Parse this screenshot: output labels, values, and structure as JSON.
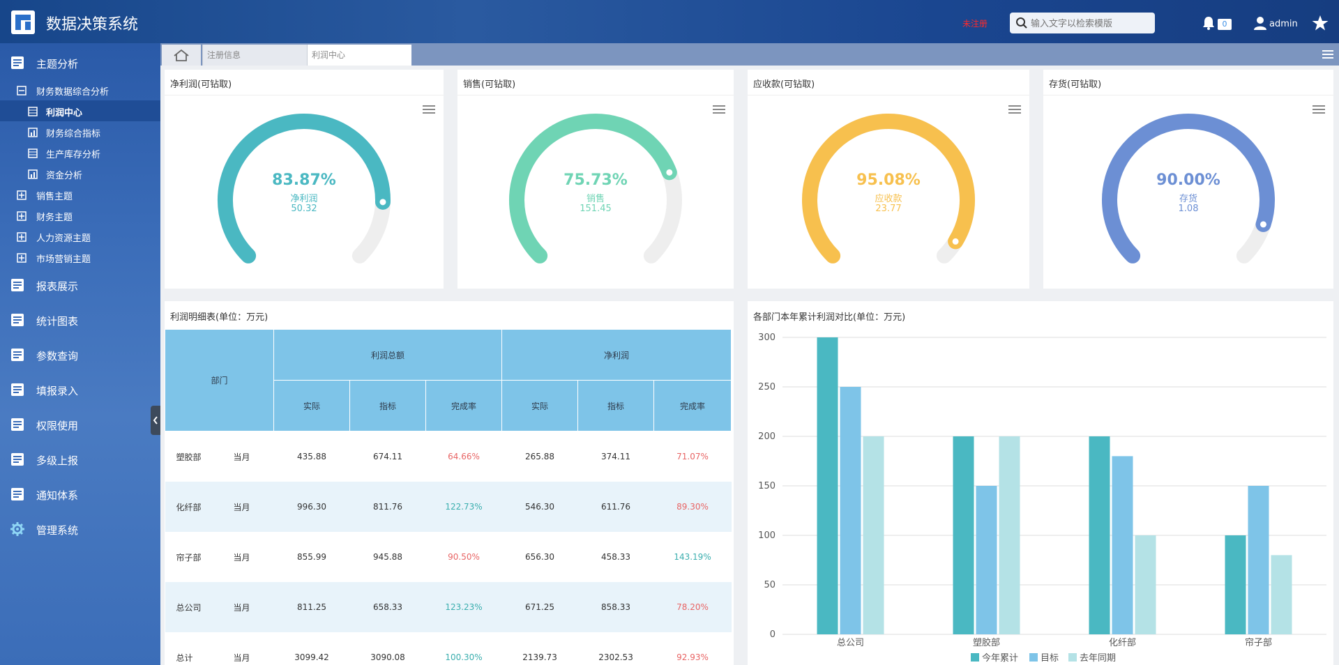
{
  "header": {
    "app_title": "数据决策系统",
    "unregistered": "未注册",
    "search_placeholder": "输入文字以检索模版",
    "notification_count": "0",
    "username": "admin"
  },
  "sidebar": {
    "main_items": [
      {
        "label": "主题分析"
      },
      {
        "label": "报表展示"
      },
      {
        "label": "统计图表"
      },
      {
        "label": "参数查询"
      },
      {
        "label": "填报录入"
      },
      {
        "label": "权限使用"
      },
      {
        "label": "多级上报"
      },
      {
        "label": "通知体系"
      },
      {
        "label": "管理系统"
      }
    ],
    "sub_items": [
      {
        "label": "财务数据综合分析"
      },
      {
        "label": "销售主题"
      },
      {
        "label": "财务主题"
      },
      {
        "label": "人力资源主题"
      },
      {
        "label": "市场营销主题"
      }
    ],
    "leaf_items": [
      {
        "label": "利润中心",
        "active": true
      },
      {
        "label": "财务综合指标"
      },
      {
        "label": "生产库存分析"
      },
      {
        "label": "资金分析"
      }
    ]
  },
  "tabs": [
    {
      "label": "注册信息"
    },
    {
      "label": "利润中心"
    }
  ],
  "gauges": [
    {
      "title": "净利润(可钻取)",
      "percent": "83.87%",
      "label": "净利润",
      "value": "50.32",
      "ratio": 0.8387,
      "color": "#4ab8c2"
    },
    {
      "title": "销售(可钻取)",
      "percent": "75.73%",
      "label": "销售",
      "value": "151.45",
      "ratio": 0.7573,
      "color": "#6fd4b4"
    },
    {
      "title": "应收款(可钻取)",
      "percent": "95.08%",
      "label": "应收款",
      "value": "23.77",
      "ratio": 0.9508,
      "color": "#f7c04e"
    },
    {
      "title": "存货(可钻取)",
      "percent": "90.00%",
      "label": "存货",
      "value": "1.08",
      "ratio": 0.9,
      "color": "#6c8fd4"
    }
  ],
  "table": {
    "title": "利润明细表(单位：万元)",
    "header_dept": "部门",
    "header_group1": "利润总额",
    "header_group2": "净利润",
    "sub_headers": [
      "实际",
      "指标",
      "完成率",
      "实际",
      "指标",
      "完成率"
    ],
    "rows": [
      {
        "dept": "塑胶部",
        "period": "当月",
        "cells": [
          "435.88",
          "674.11",
          "64.66%",
          "265.88",
          "374.11",
          "71.07%"
        ],
        "rate1_color": "red",
        "rate2_color": "red"
      },
      {
        "dept": "化纤部",
        "period": "当月",
        "cells": [
          "996.30",
          "811.76",
          "122.73%",
          "546.30",
          "611.76",
          "89.30%"
        ],
        "rate1_color": "teal",
        "rate2_color": "red"
      },
      {
        "dept": "帘子部",
        "period": "当月",
        "cells": [
          "855.99",
          "945.88",
          "90.50%",
          "656.30",
          "458.33",
          "143.19%"
        ],
        "rate1_color": "red",
        "rate2_color": "teal"
      },
      {
        "dept": "总公司",
        "period": "当月",
        "cells": [
          "811.25",
          "658.33",
          "123.23%",
          "671.25",
          "858.33",
          "78.20%"
        ],
        "rate1_color": "teal",
        "rate2_color": "red"
      },
      {
        "dept": "总计",
        "period": "当月",
        "cells": [
          "3099.42",
          "3090.08",
          "100.30%",
          "2139.73",
          "2302.53",
          "92.93%"
        ],
        "rate1_color": "teal",
        "rate2_color": "red"
      }
    ]
  },
  "chart_data": {
    "type": "bar",
    "title": "各部门本年累计利润对比(单位：万元)",
    "categories": [
      "总公司",
      "塑胶部",
      "化纤部",
      "帘子部"
    ],
    "series": [
      {
        "name": "今年累计",
        "values": [
          300,
          200,
          200,
          100
        ],
        "color": "#4ab8c2"
      },
      {
        "name": "目标",
        "values": [
          250,
          150,
          180,
          150
        ],
        "color": "#7ec4e8"
      },
      {
        "name": "去年同期",
        "values": [
          200,
          200,
          100,
          80
        ],
        "color": "#b4e2e6"
      }
    ],
    "ylim": [
      0,
      300
    ],
    "yticks": [
      0,
      50,
      100,
      150,
      200,
      250,
      300
    ],
    "grid": true,
    "legend": "bottom"
  }
}
